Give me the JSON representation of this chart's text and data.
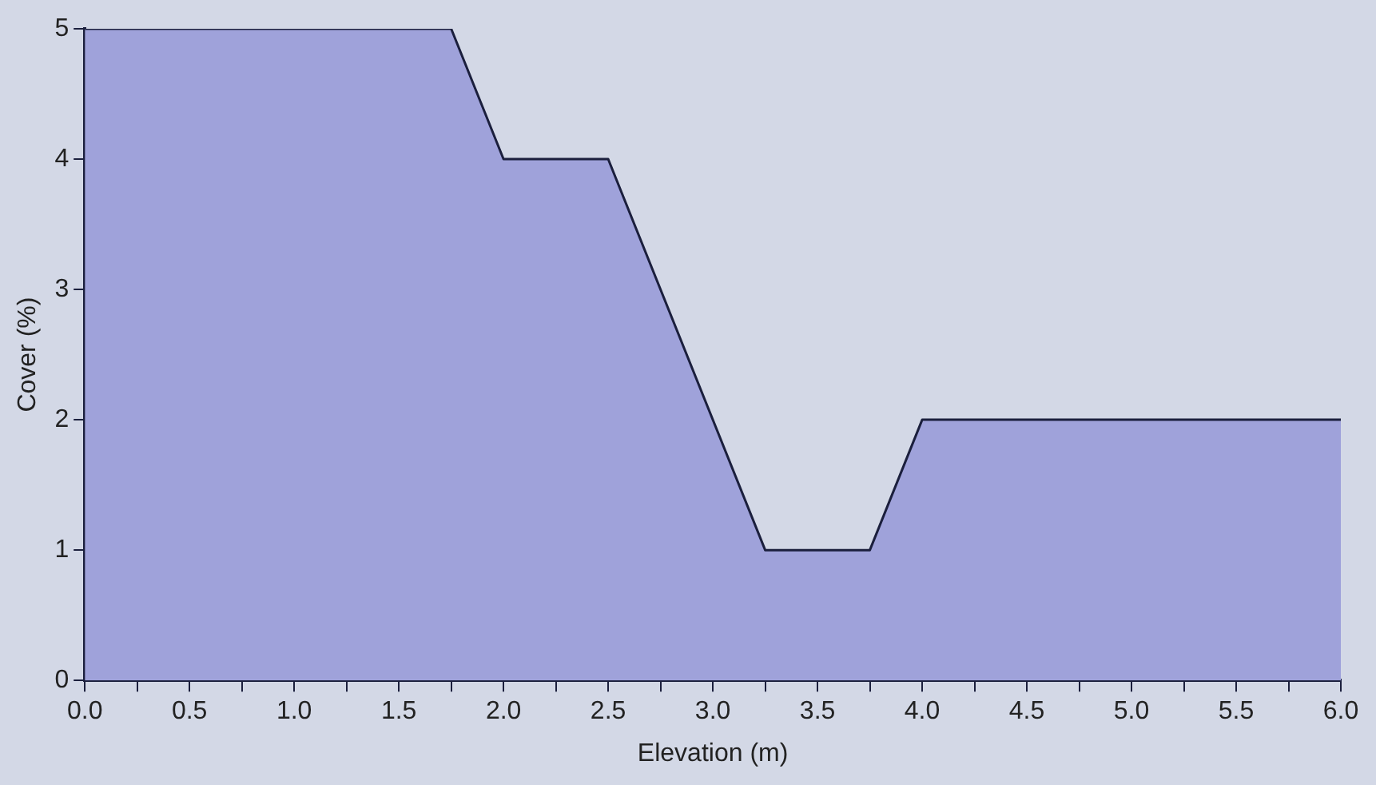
{
  "chart_data": {
    "type": "area",
    "xlabel": "Elevation (m)",
    "ylabel": "Cover (%)",
    "x": [
      0,
      1.75,
      2,
      2.5,
      3.25,
      3.75,
      4,
      6
    ],
    "series": [
      {
        "color": "#9fa2da",
        "values": [
          5,
          5,
          4,
          4,
          1,
          1,
          2,
          2
        ]
      }
    ],
    "xlim": [
      0,
      6
    ],
    "xticks": [
      {
        "value": 0,
        "label": "0.0"
      },
      {
        "value": 0.25,
        "label": null
      },
      {
        "value": 0.5,
        "label": "0.5"
      },
      {
        "value": 0.75,
        "label": null
      },
      {
        "value": 1,
        "label": "1.0"
      },
      {
        "value": 1.25,
        "label": null
      },
      {
        "value": 1.5,
        "label": "1.5"
      },
      {
        "value": 1.75,
        "label": null
      },
      {
        "value": 2,
        "label": "2.0"
      },
      {
        "value": 2.25,
        "label": null
      },
      {
        "value": 2.5,
        "label": "2.5"
      },
      {
        "value": 2.75,
        "label": null
      },
      {
        "value": 3,
        "label": "3.0"
      },
      {
        "value": 3.25,
        "label": null
      },
      {
        "value": 3.5,
        "label": "3.5"
      },
      {
        "value": 3.75,
        "label": null
      },
      {
        "value": 4,
        "label": "4.0"
      },
      {
        "value": 4.25,
        "label": null
      },
      {
        "value": 4.5,
        "label": "4.5"
      },
      {
        "value": 4.75,
        "label": null
      },
      {
        "value": 5,
        "label": "5.0"
      },
      {
        "value": 5.25,
        "label": null
      },
      {
        "value": 5.5,
        "label": "5.5"
      },
      {
        "value": 5.75,
        "label": null
      },
      {
        "value": 6,
        "label": "6.0"
      }
    ],
    "ylim": [
      0,
      5
    ],
    "yticks": [
      0,
      1,
      2,
      3,
      4,
      5
    ],
    "grid": false,
    "legend": false,
    "marker": "none",
    "line_style": "solid"
  }
}
